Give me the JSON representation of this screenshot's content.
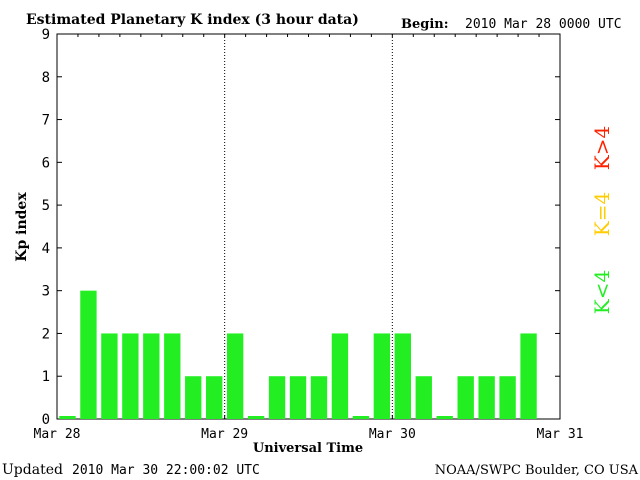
{
  "header": {
    "title": "Estimated Planetary K index (3 hour data)",
    "begin_label": "Begin:",
    "begin_value": "2010 Mar 28 0000 UTC"
  },
  "footer": {
    "updated_label": "Updated",
    "updated_value": "2010 Mar 30 22:00:02 UTC",
    "source": "NOAA/SWPC Boulder, CO USA"
  },
  "legend": [
    {
      "label": "K<4",
      "color": "#22ee22"
    },
    {
      "label": "K=4",
      "color": "#ffcc00"
    },
    {
      "label": "K>4",
      "color": "#ff2200"
    }
  ],
  "chart_data": {
    "type": "bar",
    "title": "Estimated Planetary K index (3 hour data)",
    "xlabel": "Universal Time",
    "ylabel": "Kp index",
    "ylim": [
      0,
      9
    ],
    "yticks": [
      "0",
      "1",
      "2",
      "3",
      "4",
      "5",
      "6",
      "7",
      "8",
      "9"
    ],
    "xticks": [
      "Mar 28",
      "Mar 29",
      "Mar 30",
      "Mar 31"
    ],
    "day_separators": [
      "Mar 29",
      "Mar 30"
    ],
    "interval_hours": 3,
    "values": [
      0,
      3,
      2,
      2,
      2,
      2,
      1,
      1,
      2,
      0,
      1,
      1,
      1,
      2,
      0,
      2,
      2,
      1,
      0,
      1,
      1,
      1,
      2
    ],
    "bar_color": "#22ee22",
    "grid": false
  }
}
